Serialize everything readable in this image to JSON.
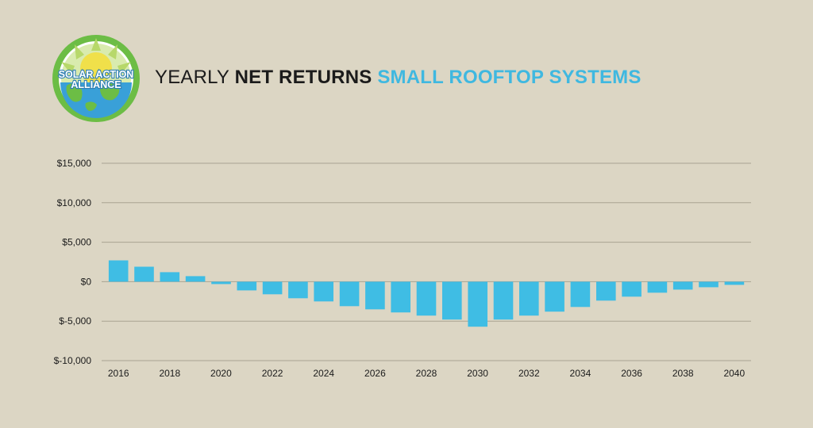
{
  "logo": {
    "line1": "SOLAR ACTION",
    "line2": "ALLIANCE",
    "ring_color": "#6cbd45",
    "globe_color": "#39a0d8"
  },
  "header": {
    "title_part1": "YEARLY",
    "title_part2": "NET RETURNS",
    "title_part3": "SMALL ROOFTOP SYSTEMS",
    "accent_color": "#3fb8e0"
  },
  "chart_data": {
    "type": "bar",
    "title": "YEARLY NET RETURNS SMALL ROOFTOP SYSTEMS",
    "xlabel": "",
    "ylabel": "",
    "ylim": [
      -10000,
      15000
    ],
    "y_ticks": [
      15000,
      10000,
      5000,
      0,
      -5000,
      -10000
    ],
    "y_tick_labels": [
      "$15,000",
      "$10,000",
      "$5,000",
      "$0",
      "$-5,000",
      "$-10,000"
    ],
    "x_tick_labels": [
      "2016",
      "2018",
      "2020",
      "2022",
      "2024",
      "2026",
      "2028",
      "2030",
      "2032",
      "2034",
      "2036",
      "2038",
      "2040"
    ],
    "categories": [
      "2016",
      "2017",
      "2018",
      "2019",
      "2020",
      "2021",
      "2022",
      "2023",
      "2024",
      "2025",
      "2026",
      "2027",
      "2028",
      "2029",
      "2030",
      "2031",
      "2032",
      "2033",
      "2034",
      "2035",
      "2036",
      "2037",
      "2038",
      "2039",
      "2040"
    ],
    "values": [
      2700,
      1900,
      1200,
      700,
      -300,
      -1100,
      -1600,
      -2100,
      -2500,
      -3100,
      -3500,
      -3900,
      -4300,
      -4800,
      -5700,
      -4800,
      -4300,
      -3800,
      -3200,
      -2400,
      -1900,
      -1400,
      -1000,
      -700,
      -400
    ],
    "bar_color": "#3fbde4",
    "grid": true,
    "grid_color": "#a9a392"
  }
}
